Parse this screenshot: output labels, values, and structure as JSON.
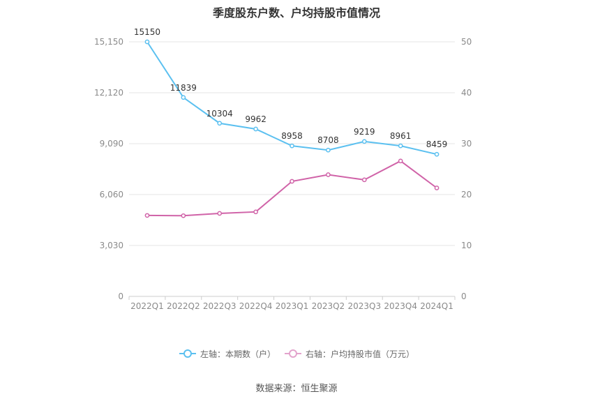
{
  "title": "季度股东户数、户均持股市值情况",
  "source": "数据来源：恒生聚源",
  "legend": {
    "left": "左轴：本期数（户）",
    "right": "右轴：户均持股市值（万元）"
  },
  "colors": {
    "left": "#5bc0f0",
    "right": "#d063a8",
    "grid": "#e6e6e6",
    "axis_text": "#8a8a8a"
  },
  "chart_data": {
    "type": "line",
    "categories": [
      "2022Q1",
      "2022Q2",
      "2022Q3",
      "2022Q4",
      "2023Q1",
      "2023Q2",
      "2023Q3",
      "2023Q4",
      "2024Q1"
    ],
    "y_left": {
      "min": 0,
      "max": 15150,
      "ticks": [
        0,
        3030,
        6060,
        9090,
        12120,
        15150
      ],
      "tick_labels": [
        "0",
        "3,030",
        "6,060",
        "9,090",
        "12,120",
        "15,150"
      ]
    },
    "y_right": {
      "min": 0,
      "max": 50,
      "ticks": [
        0,
        10,
        20,
        30,
        40,
        50
      ],
      "tick_labels": [
        "0",
        "10",
        "20",
        "30",
        "40",
        "50"
      ]
    },
    "grid": true,
    "legend_position": "bottom",
    "series": [
      {
        "name": "左轴：本期数（户）",
        "axis": "left",
        "color": "#5bc0f0",
        "values": [
          15150,
          11839,
          10304,
          9962,
          8958,
          8708,
          9219,
          8961,
          8459
        ],
        "labels": [
          "15150",
          "11839",
          "10304",
          "9962",
          "8958",
          "8708",
          "9219",
          "8961",
          "8459"
        ]
      },
      {
        "name": "右轴：户均持股市值（万元）",
        "axis": "right",
        "color": "#d063a8",
        "values": [
          15.9,
          15.85,
          16.3,
          16.6,
          22.6,
          23.9,
          22.9,
          26.6,
          21.3
        ]
      }
    ]
  }
}
